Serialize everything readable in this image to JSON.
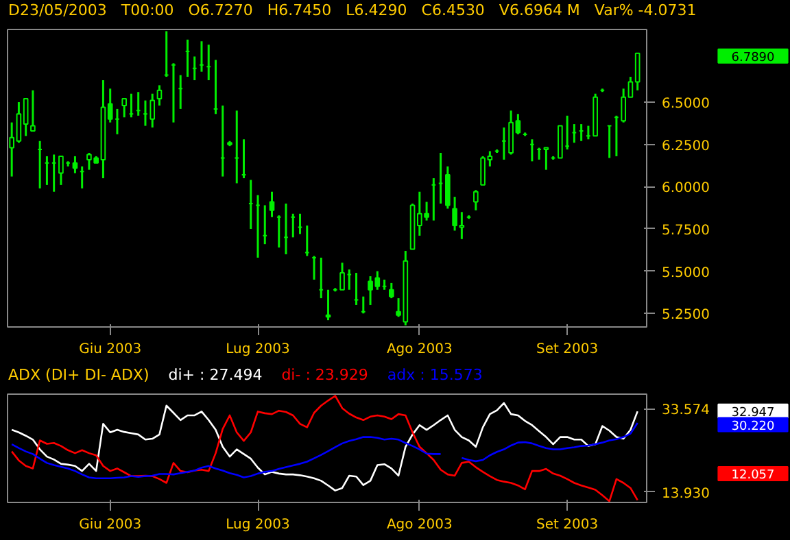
{
  "chart_data": [
    {
      "type": "candlestick",
      "subtitle": "D23/05/2003   T00:00   O6.7270   H6.7450   L6.4290   C6.4530   V6.6964 M   Var% -4.0731",
      "annotations": [
        "6.7890"
      ],
      "categories": [
        null,
        null,
        null,
        null,
        null,
        null,
        null,
        null,
        null,
        null,
        null,
        null,
        null,
        null,
        "Giu 2003",
        null,
        null,
        null,
        null,
        null,
        null,
        null,
        null,
        null,
        null,
        null,
        null,
        null,
        null,
        null,
        null,
        null,
        null,
        null,
        null,
        "Lug 2003",
        null,
        null,
        null,
        null,
        null,
        null,
        null,
        null,
        null,
        null,
        null,
        null,
        null,
        null,
        null,
        null,
        null,
        null,
        null,
        null,
        null,
        null,
        "Ago 2003",
        null,
        null,
        null,
        null,
        null,
        null,
        null,
        null,
        null,
        null,
        null,
        null,
        null,
        null,
        null,
        null,
        null,
        null,
        null,
        null,
        "Set 2003",
        null,
        null,
        null,
        null,
        null,
        null,
        null,
        null,
        null,
        null
      ],
      "ohlc": [
        [
          6.23,
          6.38,
          6.06,
          6.29
        ],
        [
          6.27,
          6.5,
          6.26,
          6.43
        ],
        [
          6.37,
          6.52,
          6.3,
          6.52
        ],
        [
          6.33,
          6.57,
          6.33,
          6.36
        ],
        [
          6.22,
          6.27,
          5.99,
          6.22
        ],
        [
          6.14,
          6.18,
          6.01,
          6.14
        ],
        [
          6.14,
          6.19,
          5.97,
          6.14
        ],
        [
          6.08,
          6.18,
          6.01,
          6.18
        ],
        [
          6.14,
          6.15,
          6.12,
          6.14
        ],
        [
          6.14,
          6.18,
          6.08,
          6.11
        ],
        [
          6.09,
          6.12,
          5.99,
          6.09
        ],
        [
          6.16,
          6.2,
          6.1,
          6.19
        ],
        [
          6.17,
          6.18,
          6.14,
          6.14
        ],
        [
          6.16,
          6.63,
          6.05,
          6.47
        ],
        [
          6.49,
          6.58,
          6.38,
          6.4
        ],
        [
          6.4,
          6.46,
          6.31,
          6.4
        ],
        [
          6.48,
          6.52,
          6.41,
          6.52
        ],
        [
          6.43,
          6.55,
          6.41,
          6.43
        ],
        [
          6.45,
          6.56,
          6.42,
          6.45
        ],
        [
          6.43,
          6.51,
          6.36,
          6.43
        ],
        [
          6.4,
          6.55,
          6.35,
          6.51
        ],
        [
          6.52,
          6.6,
          6.48,
          6.57
        ],
        [
          6.66,
          6.92,
          6.65,
          6.66
        ],
        [
          6.72,
          6.73,
          6.38,
          6.72
        ],
        [
          6.58,
          6.66,
          6.46,
          6.58
        ],
        [
          6.8,
          6.87,
          6.65,
          6.8
        ],
        [
          6.7,
          6.77,
          6.63,
          6.7
        ],
        [
          6.72,
          6.86,
          6.68,
          6.72
        ],
        [
          6.71,
          6.84,
          6.63,
          6.71
        ],
        [
          6.46,
          6.75,
          6.43,
          6.46
        ],
        [
          6.17,
          6.48,
          6.06,
          6.17
        ],
        [
          6.26,
          6.27,
          6.24,
          6.25
        ],
        [
          6.17,
          6.45,
          6.02,
          6.17
        ],
        [
          6.07,
          6.28,
          6.05,
          6.07
        ],
        [
          5.9,
          6.04,
          5.75,
          5.9
        ],
        [
          5.89,
          5.95,
          5.58,
          5.89
        ],
        [
          5.71,
          5.89,
          5.66,
          5.71
        ],
        [
          5.91,
          5.97,
          5.82,
          5.86
        ],
        [
          5.82,
          5.83,
          5.64,
          5.82
        ],
        [
          5.7,
          5.9,
          5.6,
          5.7
        ],
        [
          5.82,
          5.84,
          5.7,
          5.82
        ],
        [
          5.76,
          5.84,
          5.72,
          5.76
        ],
        [
          5.61,
          5.77,
          5.59,
          5.61
        ],
        [
          5.58,
          5.59,
          5.45,
          5.58
        ],
        [
          5.39,
          5.58,
          5.34,
          5.39
        ],
        [
          5.24,
          5.39,
          5.21,
          5.23
        ],
        [
          5.39,
          5.4,
          5.38,
          5.39
        ],
        [
          5.39,
          5.55,
          5.39,
          5.49
        ],
        [
          5.48,
          5.51,
          5.39,
          5.48
        ],
        [
          5.33,
          5.49,
          5.3,
          5.33
        ],
        [
          5.26,
          5.35,
          5.25,
          5.26
        ],
        [
          5.44,
          5.47,
          5.3,
          5.39
        ],
        [
          5.46,
          5.5,
          5.39,
          5.41
        ],
        [
          5.41,
          5.45,
          5.39,
          5.41
        ],
        [
          5.39,
          5.43,
          5.34,
          5.35
        ],
        [
          5.26,
          5.34,
          5.23,
          5.24
        ],
        [
          5.2,
          5.62,
          5.18,
          5.56
        ],
        [
          5.63,
          5.9,
          5.63,
          5.89
        ],
        [
          5.77,
          5.97,
          5.71,
          5.84
        ],
        [
          5.84,
          5.91,
          5.8,
          5.82
        ],
        [
          6.01,
          6.05,
          5.8,
          6.01
        ],
        [
          6.02,
          6.2,
          5.9,
          6.02
        ],
        [
          6.07,
          6.12,
          5.87,
          5.89
        ],
        [
          5.87,
          5.94,
          5.74,
          5.77
        ],
        [
          5.76,
          5.85,
          5.69,
          5.77
        ],
        [
          5.82,
          5.83,
          5.81,
          5.82
        ],
        [
          5.91,
          5.98,
          5.86,
          5.97
        ],
        [
          6.01,
          6.18,
          6.01,
          6.17
        ],
        [
          6.16,
          6.21,
          6.12,
          6.18
        ],
        [
          6.21,
          6.22,
          6.2,
          6.21
        ],
        [
          6.27,
          6.35,
          6.16,
          6.27
        ],
        [
          6.2,
          6.45,
          6.19,
          6.38
        ],
        [
          6.39,
          6.43,
          6.31,
          6.32
        ],
        [
          6.31,
          6.32,
          6.3,
          6.31
        ],
        [
          6.25,
          6.28,
          6.15,
          6.25
        ],
        [
          6.22,
          6.23,
          6.16,
          6.22
        ],
        [
          6.22,
          6.23,
          6.1,
          6.23
        ],
        [
          6.17,
          6.18,
          6.16,
          6.17
        ],
        [
          6.17,
          6.36,
          6.17,
          6.36
        ],
        [
          6.24,
          6.42,
          6.22,
          6.24
        ],
        [
          6.32,
          6.37,
          6.26,
          6.32
        ],
        [
          6.33,
          6.37,
          6.27,
          6.33
        ],
        [
          6.3,
          6.36,
          6.28,
          6.3
        ],
        [
          6.3,
          6.55,
          6.3,
          6.53
        ],
        [
          6.57,
          6.58,
          6.56,
          6.57
        ],
        [
          6.36,
          6.36,
          6.17,
          6.36
        ],
        [
          6.41,
          6.42,
          6.18,
          6.41
        ],
        [
          6.39,
          6.58,
          6.38,
          6.53
        ],
        [
          6.53,
          6.65,
          6.53,
          6.62
        ],
        [
          6.62,
          6.79,
          6.57,
          6.789
        ]
      ],
      "color": "#00ee00",
      "ylim": [
        5.17,
        6.93
      ],
      "yticks": [
        {
          "value": 5.25,
          "label": "5.2500"
        },
        {
          "value": 5.5,
          "label": "5.5000"
        },
        {
          "value": 5.75,
          "label": "5.7500"
        },
        {
          "value": 6.0,
          "label": "6.0000"
        },
        {
          "value": 6.25,
          "label": "6.2500"
        },
        {
          "value": 6.5,
          "label": "6.5000"
        }
      ]
    },
    {
      "type": "line",
      "title": "ADX (DI+ DI- ADX)",
      "categories": [
        null,
        null,
        null,
        null,
        null,
        null,
        null,
        null,
        null,
        null,
        null,
        null,
        null,
        null,
        "Giu 2003",
        null,
        null,
        null,
        null,
        null,
        null,
        null,
        null,
        null,
        null,
        null,
        null,
        null,
        null,
        null,
        null,
        null,
        null,
        null,
        null,
        "Lug 2003",
        null,
        null,
        null,
        null,
        null,
        null,
        null,
        null,
        null,
        null,
        null,
        null,
        null,
        null,
        null,
        null,
        null,
        null,
        null,
        null,
        null,
        null,
        "Ago 2003",
        null,
        null,
        null,
        null,
        null,
        null,
        null,
        null,
        null,
        null,
        null,
        null,
        null,
        null,
        null,
        null,
        null,
        null,
        null,
        null,
        "Set 2003",
        null,
        null,
        null,
        null,
        null,
        null,
        null,
        null,
        null,
        null
      ],
      "series": [
        {
          "name": "di+ : 27.494",
          "color": "#ffffff",
          "values": [
            28.6,
            28.0,
            27.2,
            26.3,
            24.0,
            22.3,
            21.6,
            20.6,
            20.4,
            20.1,
            18.9,
            20.6,
            18.9,
            30.0,
            28.0,
            28.6,
            28.1,
            27.8,
            27.5,
            26.3,
            26.5,
            27.5,
            34.3,
            32.6,
            30.9,
            32.0,
            32.0,
            32.9,
            30.9,
            28.6,
            24.6,
            22.3,
            24.0,
            22.9,
            21.8,
            19.7,
            18.1,
            18.7,
            18.3,
            18.1,
            18.1,
            17.9,
            17.6,
            17.2,
            16.6,
            15.5,
            14.3,
            14.9,
            17.8,
            17.6,
            15.6,
            16.6,
            20.3,
            20.5,
            19.5,
            17.8,
            24.6,
            27.5,
            29.7,
            28.6,
            29.7,
            30.9,
            32.0,
            28.6,
            26.9,
            26.1,
            24.6,
            29.2,
            32.3,
            33.2,
            34.9,
            32.3,
            32.0,
            30.7,
            29.7,
            28.3,
            26.9,
            25.2,
            26.9,
            26.9,
            26.3,
            26.3,
            24.8,
            25.2,
            29.5,
            28.4,
            26.9,
            26.5,
            28.6,
            32.947
          ]
        },
        {
          "name": "di- : 23.929",
          "color": "#ff0000",
          "values": [
            23.5,
            21.4,
            20.1,
            19.5,
            26.1,
            25.3,
            25.5,
            24.8,
            23.8,
            23.1,
            23.8,
            23.1,
            22.6,
            20.1,
            18.9,
            19.5,
            18.6,
            17.7,
            17.7,
            17.8,
            17.7,
            17.0,
            16.1,
            20.8,
            18.9,
            18.6,
            19.0,
            19.2,
            18.9,
            23.1,
            28.8,
            32.0,
            28.0,
            26.0,
            28.0,
            32.9,
            32.5,
            32.3,
            33.1,
            32.8,
            32.0,
            30.0,
            29.2,
            32.6,
            34.3,
            35.5,
            36.6,
            33.7,
            32.4,
            31.5,
            30.9,
            31.7,
            32.0,
            31.7,
            31.1,
            32.3,
            32.0,
            28.0,
            24.6,
            23.1,
            21.5,
            19.2,
            18.1,
            17.8,
            20.8,
            21.1,
            19.8,
            18.7,
            17.7,
            16.8,
            16.4,
            16.1,
            15.5,
            14.6,
            18.9,
            18.9,
            19.4,
            18.3,
            17.8,
            17.0,
            16.1,
            15.5,
            15.0,
            14.5,
            13.2,
            11.8,
            17.0,
            16.1,
            14.9,
            12.057
          ]
        },
        {
          "name": "adx : 15.573",
          "color": "#0000ff",
          "values": [
            25.2,
            24.3,
            23.5,
            22.9,
            21.8,
            20.8,
            20.3,
            19.9,
            19.5,
            18.9,
            18.1,
            17.4,
            17.2,
            17.2,
            17.2,
            17.3,
            17.4,
            17.7,
            17.5,
            17.7,
            17.8,
            18.2,
            18.2,
            18.1,
            18.4,
            18.7,
            19.0,
            19.7,
            20.1,
            19.5,
            19.0,
            18.4,
            18.0,
            17.4,
            17.7,
            18.3,
            18.7,
            18.9,
            19.4,
            19.8,
            20.2,
            20.6,
            21.1,
            21.9,
            22.7,
            23.6,
            24.5,
            25.4,
            26.0,
            26.4,
            26.9,
            26.9,
            26.7,
            26.3,
            26.5,
            26.3,
            25.5,
            24.8,
            24.0,
            23.0,
            22.9,
            22.9,
            null,
            null,
            22.0,
            21.5,
            21.2,
            21.5,
            22.6,
            23.4,
            24.0,
            24.9,
            25.6,
            25.7,
            25.4,
            24.8,
            24.3,
            24.0,
            24.0,
            24.3,
            24.5,
            24.8,
            24.9,
            25.2,
            25.6,
            26.1,
            26.4,
            26.9,
            27.7,
            30.22
          ]
        }
      ],
      "annotations": [
        "32.947",
        "12.057",
        "30.220"
      ],
      "ylim": [
        11.5,
        37.0
      ],
      "yticks": [
        {
          "value": 33.574,
          "label": "33.574"
        },
        {
          "value": 13.93,
          "label": "13.930"
        }
      ]
    }
  ]
}
